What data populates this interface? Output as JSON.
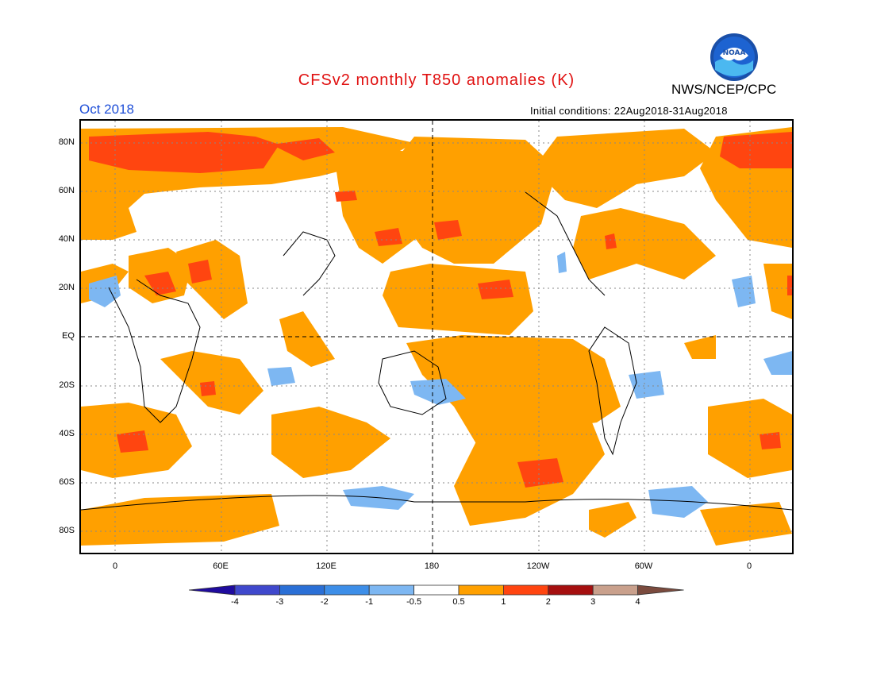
{
  "title": "CFSv2 monthly T850 anomalies (K)",
  "organization": "NWS/NCEP/CPC",
  "logo_text": "NOAA",
  "valid_month": "Oct 2018",
  "initial_conditions": "Initial conditions: 22Aug2018-31Aug2018",
  "latitude_labels": [
    "80N",
    "60N",
    "40N",
    "20N",
    "EQ",
    "20S",
    "40S",
    "60S",
    "80S"
  ],
  "longitude_labels": [
    "0",
    "60E",
    "120E",
    "180",
    "120W",
    "60W",
    "0"
  ],
  "colorbar": {
    "labels": [
      "-4",
      "-3",
      "-2",
      "-1",
      "-0.5",
      "0.5",
      "1",
      "2",
      "3",
      "4"
    ],
    "colors": [
      "#1f0b9e",
      "#3f48cc",
      "#2a6fd6",
      "#3d8ee8",
      "#7db7f2",
      "#ffffff",
      "#ffa000",
      "#ff4510",
      "#a50f0f",
      "#c9a08c",
      "#7b4b3e"
    ]
  },
  "colors": {
    "warm_weak": "#ffa000",
    "warm_strong": "#ff4510",
    "cool_weak": "#7db7f2",
    "title": "#e01010",
    "month": "#1f4fd8"
  }
}
